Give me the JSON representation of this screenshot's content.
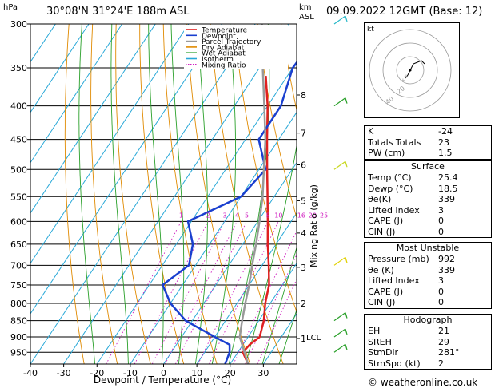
{
  "header": {
    "hpa_label": "hPa",
    "location": "30°08'N  31°24'E  188m  ASL",
    "km_label": "km",
    "asl_label": "ASL",
    "datetime": "09.09.2022  12GMT  (Base: 12)"
  },
  "chart_data": {
    "type": "line",
    "title": "",
    "xlabel": "Dewpoint / Temperature (°C)",
    "ylabel": "hPa",
    "y_scale": "log",
    "ylim": [
      300,
      990
    ],
    "xlim": [
      -40,
      40
    ],
    "skew": "temperature isotherms skewed to the right",
    "grid": true,
    "pressure_ticks": [
      300,
      350,
      400,
      450,
      500,
      550,
      600,
      650,
      700,
      750,
      800,
      850,
      900,
      950
    ],
    "x_ticks": [
      "-40",
      "-30",
      "-20",
      "-10",
      "0",
      "10",
      "20",
      "30"
    ],
    "km_ticks": [
      {
        "label": "8",
        "p": 385
      },
      {
        "label": "7",
        "p": 440
      },
      {
        "label": "6",
        "p": 492
      },
      {
        "label": "5",
        "p": 558
      },
      {
        "label": "4",
        "p": 625
      },
      {
        "label": "3",
        "p": 705
      },
      {
        "label": "2",
        "p": 800
      },
      {
        "label": "1",
        "p": 905
      }
    ],
    "lcl_label": "LCL",
    "lcl_p": 900,
    "mixing_ratio_label": "Mixing Ratio (g/kg)",
    "mixing_ratio_labels": [
      "1",
      "2",
      "3",
      "4",
      "5",
      "8",
      "10",
      "16",
      "20",
      "25"
    ],
    "legend": {
      "placement": "top-center",
      "entries": [
        {
          "name": "Temperature",
          "color": "#e02020"
        },
        {
          "name": "Dewpoint",
          "color": "#1a3fcf"
        },
        {
          "name": "Parcel Trajectory",
          "color": "#999999"
        },
        {
          "name": "Dry Adiabat",
          "color": "#e08a00"
        },
        {
          "name": "Wet Adiabat",
          "color": "#2aa02a"
        },
        {
          "name": "Isotherm",
          "color": "#28a8d8"
        },
        {
          "name": "Mixing Ratio",
          "color": "#d020c0"
        }
      ]
    },
    "series": [
      {
        "name": "Temperature",
        "points": [
          {
            "p": 990,
            "t": 25.4
          },
          {
            "p": 950,
            "t": 21.5
          },
          {
            "p": 925,
            "t": 22.0
          },
          {
            "p": 900,
            "t": 23.5
          },
          {
            "p": 850,
            "t": 21.5
          },
          {
            "p": 800,
            "t": 18.5
          },
          {
            "p": 750,
            "t": 16.0
          },
          {
            "p": 700,
            "t": 12.0
          },
          {
            "p": 650,
            "t": 7.5
          },
          {
            "p": 600,
            "t": 3.0
          },
          {
            "p": 550,
            "t": -2.0
          },
          {
            "p": 500,
            "t": -7.5
          },
          {
            "p": 450,
            "t": -13.5
          },
          {
            "p": 400,
            "t": -20.0
          },
          {
            "p": 360,
            "t": -26.5
          }
        ]
      },
      {
        "name": "Dewpoint",
        "points": [
          {
            "p": 990,
            "t": 18.5
          },
          {
            "p": 950,
            "t": 17.5
          },
          {
            "p": 925,
            "t": 16.0
          },
          {
            "p": 900,
            "t": 10.0
          },
          {
            "p": 850,
            "t": -2.0
          },
          {
            "p": 800,
            "t": -10.0
          },
          {
            "p": 750,
            "t": -16.0
          },
          {
            "p": 700,
            "t": -12.0
          },
          {
            "p": 650,
            "t": -15.0
          },
          {
            "p": 600,
            "t": -21.0
          },
          {
            "p": 550,
            "t": -10.0
          },
          {
            "p": 500,
            "t": -8.0
          },
          {
            "p": 450,
            "t": -16.0
          },
          {
            "p": 400,
            "t": -16.0
          },
          {
            "p": 350,
            "t": -20.0
          },
          {
            "p": 300,
            "t": -19.0
          }
        ]
      },
      {
        "name": "Parcel Trajectory",
        "points": [
          {
            "p": 990,
            "t": 25.4
          },
          {
            "p": 900,
            "t": 17.5
          },
          {
            "p": 850,
            "t": 15.0
          },
          {
            "p": 800,
            "t": 12.5
          },
          {
            "p": 750,
            "t": 10.0
          },
          {
            "p": 700,
            "t": 7.0
          },
          {
            "p": 650,
            "t": 4.0
          },
          {
            "p": 600,
            "t": 0.5
          },
          {
            "p": 550,
            "t": -3.5
          },
          {
            "p": 500,
            "t": -8.5
          },
          {
            "p": 450,
            "t": -14.0
          },
          {
            "p": 400,
            "t": -21.0
          },
          {
            "p": 350,
            "t": -29.0
          },
          {
            "p": 300,
            "t": -38.0
          }
        ]
      }
    ],
    "wind_barbs": [
      {
        "p": 300,
        "color": "#28b8c8"
      },
      {
        "p": 400,
        "color": "#2aa02a"
      },
      {
        "p": 500,
        "color": "#c8d820"
      },
      {
        "p": 700,
        "color": "#e0d000"
      },
      {
        "p": 850,
        "color": "#2aa02a"
      },
      {
        "p": 900,
        "color": "#2aa02a"
      },
      {
        "p": 950,
        "color": "#2aa02a"
      }
    ]
  },
  "hodograph": {
    "unit_label": "kt",
    "ring_labels": [
      "20",
      "40"
    ]
  },
  "indices": {
    "top": [
      {
        "k": "K",
        "v": "-24"
      },
      {
        "k": "Totals Totals",
        "v": "23"
      },
      {
        "k": "PW (cm)",
        "v": "1.5"
      }
    ],
    "surface_title": "Surface",
    "surface": [
      {
        "k": "Temp (°C)",
        "v": "25.4"
      },
      {
        "k": "Dewp (°C)",
        "v": "18.5"
      },
      {
        "k": "θe(K)",
        "v": "339"
      },
      {
        "k": "Lifted Index",
        "v": "3"
      },
      {
        "k": "CAPE (J)",
        "v": "0"
      },
      {
        "k": "CIN (J)",
        "v": "0"
      }
    ],
    "unstable_title": "Most Unstable",
    "unstable": [
      {
        "k": "Pressure (mb)",
        "v": "992"
      },
      {
        "k": "θe (K)",
        "v": "339"
      },
      {
        "k": "Lifted Index",
        "v": "3"
      },
      {
        "k": "CAPE (J)",
        "v": "0"
      },
      {
        "k": "CIN (J)",
        "v": "0"
      }
    ],
    "hodograph_title": "Hodograph",
    "hodo": [
      {
        "k": "EH",
        "v": "21"
      },
      {
        "k": "SREH",
        "v": "29"
      },
      {
        "k": "StmDir",
        "v": "281°"
      },
      {
        "k": "StmSpd (kt)",
        "v": "2"
      }
    ]
  },
  "footer": {
    "copyright": "© weatheronline.co.uk"
  }
}
